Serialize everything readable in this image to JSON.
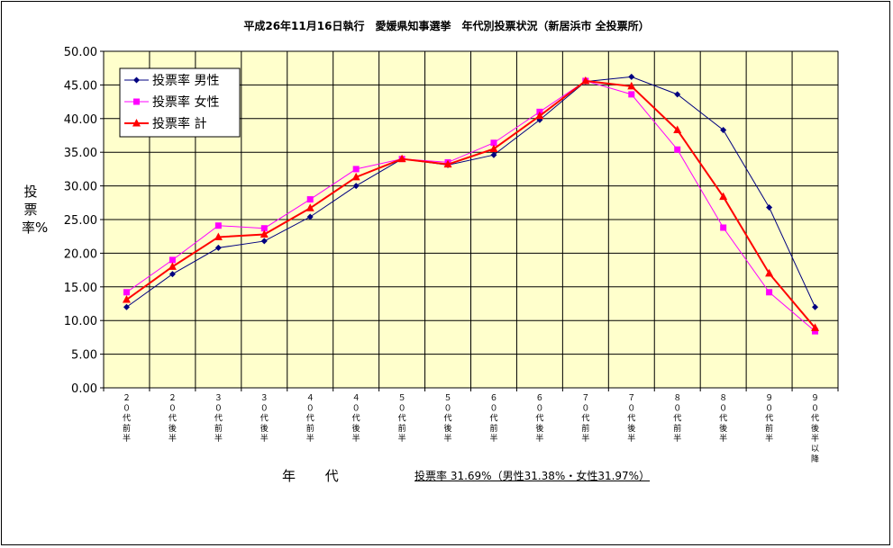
{
  "chart_data": {
    "type": "line",
    "title": "平成26年11月16日執行　愛媛県知事選挙　年代別投票状況（新居浜市 全投票所）",
    "ylabel": "投票率%",
    "xlabel": "年 代",
    "summary": "投票率 31.69%（男性31.38%・女性31.97%）",
    "ylim": [
      0,
      50
    ],
    "yticks": [
      "0.00",
      "5.00",
      "10.00",
      "15.00",
      "20.00",
      "25.00",
      "30.00",
      "35.00",
      "40.00",
      "45.00",
      "50.00"
    ],
    "grid": true,
    "legend_position": "top-left",
    "categories": [
      "20代前半",
      "20代後半",
      "30代前半",
      "30代後半",
      "40代前半",
      "40代後半",
      "50代前半",
      "50代後半",
      "60代前半",
      "60代後半",
      "70代前半",
      "70代後半",
      "80代前半",
      "80代後半",
      "90代前半",
      "90代後半以降"
    ],
    "series": [
      {
        "name": "投票率 男性",
        "color": "#000080",
        "marker": "diamond",
        "values": [
          12.0,
          16.9,
          20.8,
          21.8,
          25.4,
          30.0,
          34.0,
          33.1,
          34.6,
          39.8,
          45.5,
          46.2,
          43.6,
          38.3,
          26.8,
          12.0
        ]
      },
      {
        "name": "投票率 女性",
        "color": "#ff00ff",
        "marker": "square",
        "values": [
          14.2,
          19.0,
          24.1,
          23.7,
          28.0,
          32.5,
          34.0,
          33.5,
          36.4,
          41.0,
          45.6,
          43.6,
          35.4,
          23.8,
          14.2,
          8.4
        ]
      },
      {
        "name": "投票率 計",
        "color": "#ff0000",
        "marker": "triangle",
        "values": [
          13.1,
          18.0,
          22.4,
          22.8,
          26.7,
          31.3,
          34.0,
          33.2,
          35.5,
          40.4,
          45.6,
          44.8,
          38.3,
          28.4,
          17.0,
          8.9
        ]
      }
    ]
  },
  "colors": {
    "plot_bg": "#ffffcc",
    "grid": "#000000"
  }
}
